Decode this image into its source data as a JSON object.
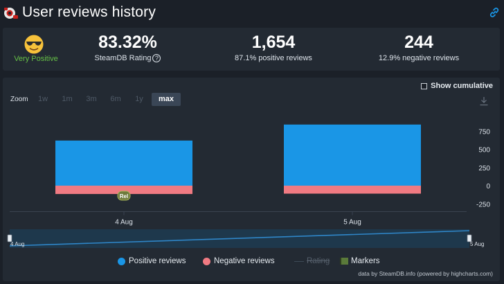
{
  "header": {
    "title": "User reviews history"
  },
  "stats": {
    "rating_label": "Very Positive",
    "rating_percent": "83.32%",
    "rating_caption": "SteamDB Rating",
    "help_glyph": "?",
    "positive_count": "1,654",
    "positive_caption": "87.1% positive reviews",
    "negative_count": "244",
    "negative_caption": "12.9% negative reviews"
  },
  "controls": {
    "show_cumulative": "Show cumulative",
    "zoom_label": "Zoom",
    "zoom_options": [
      "1w",
      "1m",
      "3m",
      "6m",
      "1y",
      "max"
    ],
    "zoom_selected": "max"
  },
  "legend": {
    "positive": "Positive reviews",
    "negative": "Negative reviews",
    "rating": "Rating",
    "markers": "Markers"
  },
  "credit": "data by SteamDB.info (powered by highcharts.com)",
  "colors": {
    "positive": "#1a96e6",
    "negative": "#f07a82",
    "rating_positive": "#66c046",
    "navigator_line": "#2f86c8"
  },
  "chart_data": {
    "type": "bar",
    "categories": [
      "4 Aug",
      "5 Aug"
    ],
    "series": [
      {
        "name": "Positive reviews",
        "values": [
          620,
          840
        ]
      },
      {
        "name": "Negative reviews",
        "values": [
          -115,
          -110
        ]
      }
    ],
    "y_ticks": [
      750,
      500,
      250,
      0,
      -250
    ],
    "ylim": [
      -300,
      880
    ],
    "annotation": {
      "label": "Rel",
      "category": "4 Aug"
    },
    "navigator": {
      "start_label": "4 Aug",
      "end_label": "5 Aug"
    }
  }
}
